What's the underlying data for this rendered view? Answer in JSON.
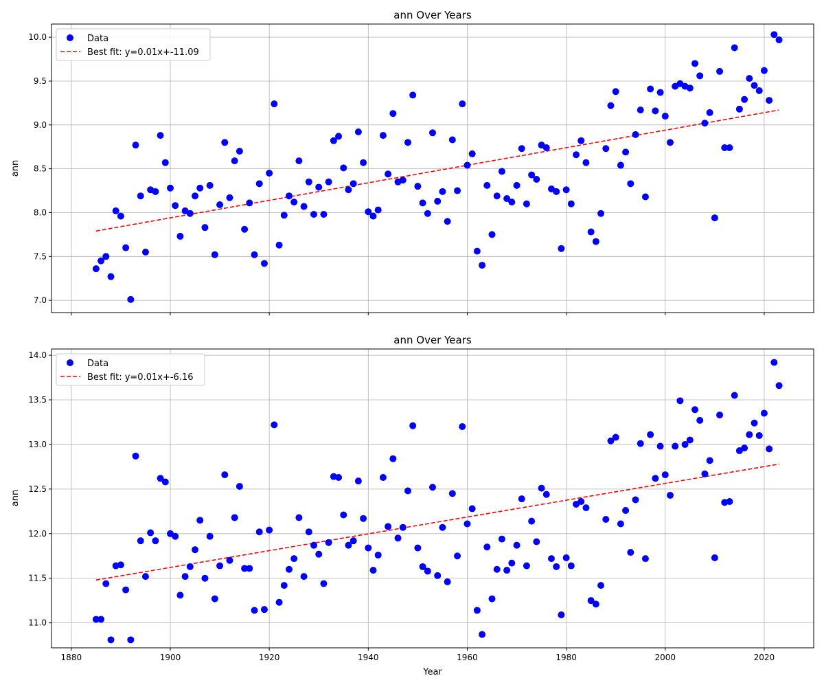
{
  "chart_data": [
    {
      "type": "scatter",
      "title": "ann Over Years",
      "xlabel": "",
      "ylabel": "ann",
      "xlim": [
        1876,
        2030
      ],
      "ylim": [
        6.86,
        10.15
      ],
      "xticks": [
        1880,
        1900,
        1920,
        1940,
        1960,
        1980,
        2000,
        2020
      ],
      "yticks": [
        7.0,
        7.5,
        8.0,
        8.5,
        9.0,
        9.5,
        10.0
      ],
      "xtick_labels_visible": false,
      "grid": true,
      "legend_placement": "top-left",
      "colors": {
        "points": "#0000ff",
        "fit": "#ff0000"
      },
      "series": [
        {
          "name": "Data",
          "x": [
            1885,
            1886,
            1887,
            1888,
            1889,
            1890,
            1891,
            1892,
            1893,
            1894,
            1895,
            1896,
            1897,
            1898,
            1899,
            1900,
            1901,
            1902,
            1903,
            1904,
            1905,
            1906,
            1907,
            1908,
            1909,
            1910,
            1911,
            1912,
            1913,
            1914,
            1915,
            1916,
            1917,
            1918,
            1919,
            1920,
            1921,
            1922,
            1923,
            1924,
            1925,
            1926,
            1927,
            1928,
            1929,
            1930,
            1931,
            1932,
            1933,
            1934,
            1935,
            1936,
            1937,
            1938,
            1939,
            1940,
            1941,
            1942,
            1943,
            1944,
            1945,
            1946,
            1947,
            1948,
            1949,
            1950,
            1951,
            1952,
            1953,
            1954,
            1955,
            1956,
            1957,
            1958,
            1959,
            1960,
            1961,
            1962,
            1963,
            1964,
            1965,
            1966,
            1967,
            1968,
            1969,
            1970,
            1971,
            1972,
            1973,
            1974,
            1975,
            1976,
            1977,
            1978,
            1979,
            1980,
            1981,
            1982,
            1983,
            1984,
            1985,
            1986,
            1987,
            1988,
            1989,
            1990,
            1991,
            1992,
            1993,
            1994,
            1995,
            1996,
            1997,
            1998,
            1999,
            2000,
            2001,
            2002,
            2003,
            2004,
            2005,
            2006,
            2007,
            2008,
            2009,
            2010,
            2011,
            2012,
            2013,
            2014,
            2015,
            2016,
            2017,
            2018,
            2019,
            2020,
            2021,
            2022,
            2023
          ],
          "y": [
            7.36,
            7.45,
            7.5,
            7.27,
            8.02,
            7.96,
            7.6,
            7.01,
            8.77,
            8.19,
            7.55,
            8.26,
            8.24,
            8.88,
            8.57,
            8.28,
            8.08,
            7.73,
            8.02,
            7.99,
            8.19,
            8.28,
            7.83,
            8.31,
            7.52,
            8.09,
            8.8,
            8.17,
            8.59,
            8.7,
            7.81,
            8.11,
            7.52,
            8.33,
            7.42,
            8.45,
            9.24,
            7.63,
            7.97,
            8.19,
            8.12,
            8.59,
            8.07,
            8.35,
            7.98,
            8.29,
            7.98,
            8.35,
            8.82,
            8.87,
            8.51,
            8.26,
            8.33,
            8.92,
            8.57,
            8.01,
            7.96,
            8.03,
            8.88,
            8.44,
            9.13,
            8.35,
            8.37,
            8.8,
            9.34,
            8.3,
            8.11,
            7.99,
            8.91,
            8.13,
            8.24,
            7.9,
            8.83,
            8.25,
            9.24,
            8.54,
            8.67,
            7.56,
            7.4,
            8.31,
            7.75,
            8.19,
            8.47,
            8.16,
            8.12,
            8.31,
            8.73,
            8.1,
            8.43,
            8.38,
            8.77,
            8.74,
            8.27,
            8.24,
            7.59,
            8.26,
            8.1,
            8.66,
            8.82,
            8.57,
            7.78,
            7.67,
            7.99,
            8.73,
            9.22,
            9.38,
            8.54,
            8.69,
            8.33,
            8.89,
            9.17,
            8.18,
            9.41,
            9.16,
            9.37,
            9.1,
            8.8,
            9.44,
            9.47,
            9.44,
            9.42,
            9.7,
            9.56,
            9.02,
            9.14,
            7.94,
            9.61,
            8.74,
            8.74,
            9.88,
            9.18,
            9.29,
            9.53,
            9.45,
            9.39,
            9.62,
            9.28,
            10.03,
            9.97
          ]
        }
      ],
      "fit": {
        "name": "Best fit: y=0.01x+-11.09",
        "x": [
          1885,
          2023
        ],
        "y": [
          7.79,
          9.17
        ]
      }
    },
    {
      "type": "scatter",
      "title": "ann Over Years",
      "xlabel": "Year",
      "ylabel": "ann",
      "xlim": [
        1876,
        2030
      ],
      "ylim": [
        10.72,
        14.07
      ],
      "xticks": [
        1880,
        1900,
        1920,
        1940,
        1960,
        1980,
        2000,
        2020
      ],
      "yticks": [
        11.0,
        11.5,
        12.0,
        12.5,
        13.0,
        13.5,
        14.0
      ],
      "xtick_labels_visible": true,
      "grid": true,
      "legend_placement": "top-left",
      "colors": {
        "points": "#0000ff",
        "fit": "#ff0000"
      },
      "series": [
        {
          "name": "Data",
          "x": [
            1885,
            1886,
            1887,
            1888,
            1889,
            1890,
            1891,
            1892,
            1893,
            1894,
            1895,
            1896,
            1897,
            1898,
            1899,
            1900,
            1901,
            1902,
            1903,
            1904,
            1905,
            1906,
            1907,
            1908,
            1909,
            1910,
            1911,
            1912,
            1913,
            1914,
            1915,
            1916,
            1917,
            1918,
            1919,
            1920,
            1921,
            1922,
            1923,
            1924,
            1925,
            1926,
            1927,
            1928,
            1929,
            1930,
            1931,
            1932,
            1933,
            1934,
            1935,
            1936,
            1937,
            1938,
            1939,
            1940,
            1941,
            1942,
            1943,
            1944,
            1945,
            1946,
            1947,
            1948,
            1949,
            1950,
            1951,
            1952,
            1953,
            1954,
            1955,
            1956,
            1957,
            1958,
            1959,
            1960,
            1961,
            1962,
            1963,
            1964,
            1965,
            1966,
            1967,
            1968,
            1969,
            1970,
            1971,
            1972,
            1973,
            1974,
            1975,
            1976,
            1977,
            1978,
            1979,
            1980,
            1981,
            1982,
            1983,
            1984,
            1985,
            1986,
            1987,
            1988,
            1989,
            1990,
            1991,
            1992,
            1993,
            1994,
            1995,
            1996,
            1997,
            1998,
            1999,
            2000,
            2001,
            2002,
            2003,
            2004,
            2005,
            2006,
            2007,
            2008,
            2009,
            2010,
            2011,
            2012,
            2013,
            2014,
            2015,
            2016,
            2017,
            2018,
            2019,
            2020,
            2021,
            2022,
            2023
          ],
          "y": [
            11.04,
            11.04,
            11.44,
            10.81,
            11.64,
            11.65,
            11.37,
            10.81,
            12.87,
            11.92,
            11.52,
            12.01,
            11.92,
            12.62,
            12.58,
            12.0,
            11.97,
            11.31,
            11.52,
            11.63,
            11.82,
            12.15,
            11.5,
            11.97,
            11.27,
            11.64,
            12.66,
            11.7,
            12.18,
            12.53,
            11.61,
            11.61,
            11.14,
            12.02,
            11.15,
            12.04,
            13.22,
            11.23,
            11.42,
            11.6,
            11.72,
            12.18,
            11.52,
            12.02,
            11.87,
            11.77,
            11.44,
            11.9,
            12.64,
            12.63,
            12.21,
            11.87,
            11.92,
            12.59,
            12.17,
            11.84,
            11.59,
            11.76,
            12.63,
            12.08,
            12.84,
            11.95,
            12.07,
            12.48,
            13.21,
            11.84,
            11.63,
            11.58,
            12.52,
            11.53,
            12.07,
            11.46,
            12.45,
            11.75,
            13.2,
            12.11,
            12.28,
            11.14,
            10.87,
            11.85,
            11.27,
            11.6,
            11.94,
            11.59,
            11.67,
            11.87,
            12.39,
            11.64,
            12.14,
            11.91,
            12.51,
            12.44,
            11.72,
            11.63,
            11.09,
            11.73,
            11.64,
            12.33,
            12.36,
            12.29,
            11.25,
            11.21,
            11.42,
            12.16,
            13.04,
            13.08,
            12.11,
            12.26,
            11.79,
            12.38,
            13.01,
            11.72,
            13.11,
            12.62,
            12.98,
            12.66,
            12.43,
            12.98,
            13.49,
            13.0,
            13.05,
            13.39,
            13.27,
            12.67,
            12.82,
            11.73,
            13.33,
            12.35,
            12.36,
            13.55,
            12.93,
            12.96,
            13.11,
            13.24,
            13.1,
            13.35,
            12.95,
            13.92,
            13.66
          ]
        }
      ],
      "fit": {
        "name": "Best fit: y=0.01x+-6.16",
        "x": [
          1885,
          2023
        ],
        "y": [
          11.48,
          12.78
        ]
      }
    }
  ]
}
